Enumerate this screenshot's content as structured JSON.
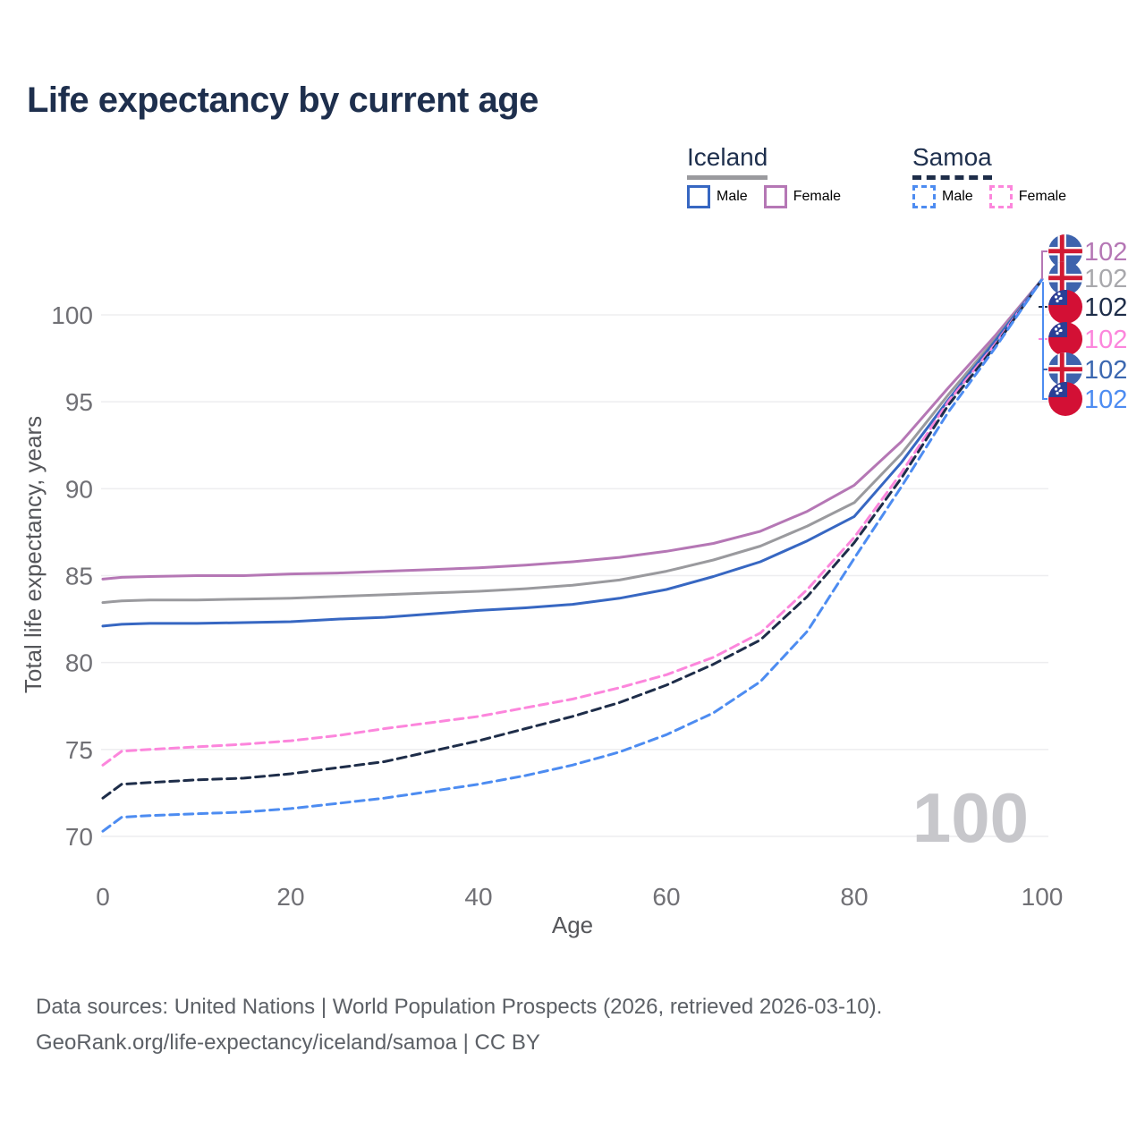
{
  "title": "Life expectancy by current age",
  "legend": {
    "groups": [
      {
        "label": "Iceland",
        "line_style": "solid",
        "underline_color": "#9a9a9e",
        "items": [
          {
            "label": "Male",
            "color": "#3767c2",
            "dashed": false
          },
          {
            "label": "Female",
            "color": "#b577b5",
            "dashed": false
          }
        ]
      },
      {
        "label": "Samoa",
        "line_style": "dashed",
        "underline_color": "#1e2d49",
        "items": [
          {
            "label": "Male",
            "color": "#4d8cf1",
            "dashed": true
          },
          {
            "label": "Female",
            "color": "#fc86dc",
            "dashed": true
          }
        ]
      }
    ]
  },
  "chart_data": {
    "type": "line",
    "title": "Life expectancy by current age",
    "xlabel": "Age",
    "ylabel": "Total life expectancy, years",
    "xlim": [
      0,
      100
    ],
    "ylim": [
      70,
      102
    ],
    "xticks": [
      0,
      20,
      40,
      60,
      80,
      100
    ],
    "yticks": [
      70,
      75,
      80,
      85,
      90,
      95,
      100
    ],
    "grid": "horizontal",
    "watermark": "100",
    "x": [
      0,
      2,
      5,
      10,
      15,
      20,
      25,
      30,
      35,
      40,
      45,
      50,
      55,
      60,
      65,
      70,
      75,
      80,
      85,
      90,
      95,
      100
    ],
    "series": [
      {
        "name": "Iceland Female",
        "country": "Iceland",
        "sex": "Female",
        "flag": "iceland",
        "color": "#b577b5",
        "dashed": false,
        "values": [
          84.8,
          84.9,
          84.95,
          85.0,
          85.0,
          85.1,
          85.15,
          85.25,
          85.35,
          85.45,
          85.6,
          85.8,
          86.05,
          86.4,
          86.85,
          87.55,
          88.7,
          90.2,
          92.7,
          95.8,
          98.8,
          102.05
        ]
      },
      {
        "name": "Iceland All",
        "country": "Iceland",
        "sex": "All",
        "flag": "iceland",
        "color": "#9a9a9e",
        "dashed": false,
        "values": [
          83.45,
          83.55,
          83.6,
          83.6,
          83.65,
          83.7,
          83.8,
          83.9,
          84.0,
          84.1,
          84.25,
          84.45,
          84.75,
          85.25,
          85.9,
          86.7,
          87.85,
          89.2,
          92.0,
          95.4,
          98.6,
          102.05
        ]
      },
      {
        "name": "Iceland Male",
        "country": "Iceland",
        "sex": "Male",
        "flag": "iceland",
        "color": "#3767c2",
        "dashed": false,
        "values": [
          82.1,
          82.2,
          82.25,
          82.25,
          82.3,
          82.35,
          82.5,
          82.6,
          82.8,
          83.0,
          83.15,
          83.35,
          83.7,
          84.2,
          84.95,
          85.8,
          87.0,
          88.4,
          91.5,
          95.1,
          98.5,
          102.05
        ]
      },
      {
        "name": "Samoa Female",
        "country": "Samoa",
        "sex": "Female",
        "flag": "samoa",
        "color": "#fc86dc",
        "dashed": true,
        "values": [
          74.1,
          74.9,
          75.0,
          75.15,
          75.3,
          75.5,
          75.8,
          76.2,
          76.55,
          76.9,
          77.4,
          77.9,
          78.55,
          79.3,
          80.3,
          81.7,
          84.2,
          87.2,
          90.9,
          95.0,
          98.3,
          102.05
        ]
      },
      {
        "name": "Samoa All",
        "country": "Samoa",
        "sex": "All",
        "flag": "samoa",
        "color": "#1e2d49",
        "dashed": true,
        "values": [
          72.2,
          73.0,
          73.1,
          73.25,
          73.35,
          73.6,
          73.95,
          74.3,
          74.9,
          75.5,
          76.2,
          76.9,
          77.7,
          78.7,
          79.9,
          81.3,
          83.8,
          86.9,
          90.6,
          94.8,
          98.2,
          102.05
        ]
      },
      {
        "name": "Samoa Male",
        "country": "Samoa",
        "sex": "Male",
        "flag": "samoa",
        "color": "#4d8cf1",
        "dashed": true,
        "values": [
          70.3,
          71.1,
          71.2,
          71.3,
          71.4,
          71.6,
          71.9,
          72.2,
          72.6,
          73.0,
          73.5,
          74.1,
          74.85,
          75.85,
          77.1,
          78.9,
          81.8,
          86.0,
          90.1,
          94.4,
          98.1,
          102.05
        ]
      }
    ],
    "end_labels": [
      {
        "series": "Iceland Female",
        "flag": "iceland",
        "value": "102",
        "color": "#b577b5"
      },
      {
        "series": "Iceland All",
        "flag": "iceland",
        "value": "102",
        "color": "#a8a8ac"
      },
      {
        "series": "Samoa All",
        "flag": "samoa",
        "value": "102",
        "color": "#1e2d49"
      },
      {
        "series": "Samoa Female",
        "flag": "samoa",
        "value": "102",
        "color": "#fc86dc"
      },
      {
        "series": "Iceland Male",
        "flag": "iceland",
        "value": "102",
        "color": "#3b67b0"
      },
      {
        "series": "Samoa Male",
        "flag": "samoa",
        "value": "102",
        "color": "#4d8cf1"
      }
    ],
    "flag_colors": {
      "iceland": {
        "blue": "#3e63ad",
        "white": "#ffffff",
        "red": "#d11a32"
      },
      "samoa": {
        "red": "#d31035",
        "canton": "#2a3f96",
        "star": "#ffffff"
      }
    }
  },
  "footer": {
    "line1": "Data sources: United Nations | World Population Prospects (2026, retrieved 2026-03-10).",
    "line2": "GeoRank.org/life-expectancy/iceland/samoa | CC BY"
  }
}
